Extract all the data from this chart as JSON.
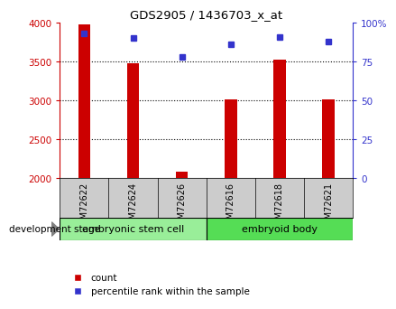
{
  "title": "GDS2905 / 1436703_x_at",
  "samples": [
    "GSM72622",
    "GSM72624",
    "GSM72626",
    "GSM72616",
    "GSM72618",
    "GSM72621"
  ],
  "counts": [
    3980,
    3480,
    2090,
    3020,
    3520,
    3020
  ],
  "percentiles": [
    93,
    90,
    78,
    86,
    91,
    88
  ],
  "ylim_left": [
    2000,
    4000
  ],
  "ylim_right": [
    0,
    100
  ],
  "yticks_left": [
    2000,
    2500,
    3000,
    3500,
    4000
  ],
  "yticks_right": [
    0,
    25,
    50,
    75,
    100
  ],
  "bar_color": "#cc0000",
  "dot_color": "#3333cc",
  "group1_label": "embryonic stem cell",
  "group2_label": "embryoid body",
  "group1_n": 3,
  "group2_n": 3,
  "stage_label": "development stage",
  "legend_count": "count",
  "legend_pct": "percentile rank within the sample",
  "tick_color_left": "#cc0000",
  "tick_color_right": "#3333cc",
  "bar_width": 0.25,
  "figsize": [
    4.51,
    3.45
  ],
  "dpi": 100,
  "group1_color": "#99ee99",
  "group2_color": "#55dd55",
  "xtick_bg": "#cccccc"
}
